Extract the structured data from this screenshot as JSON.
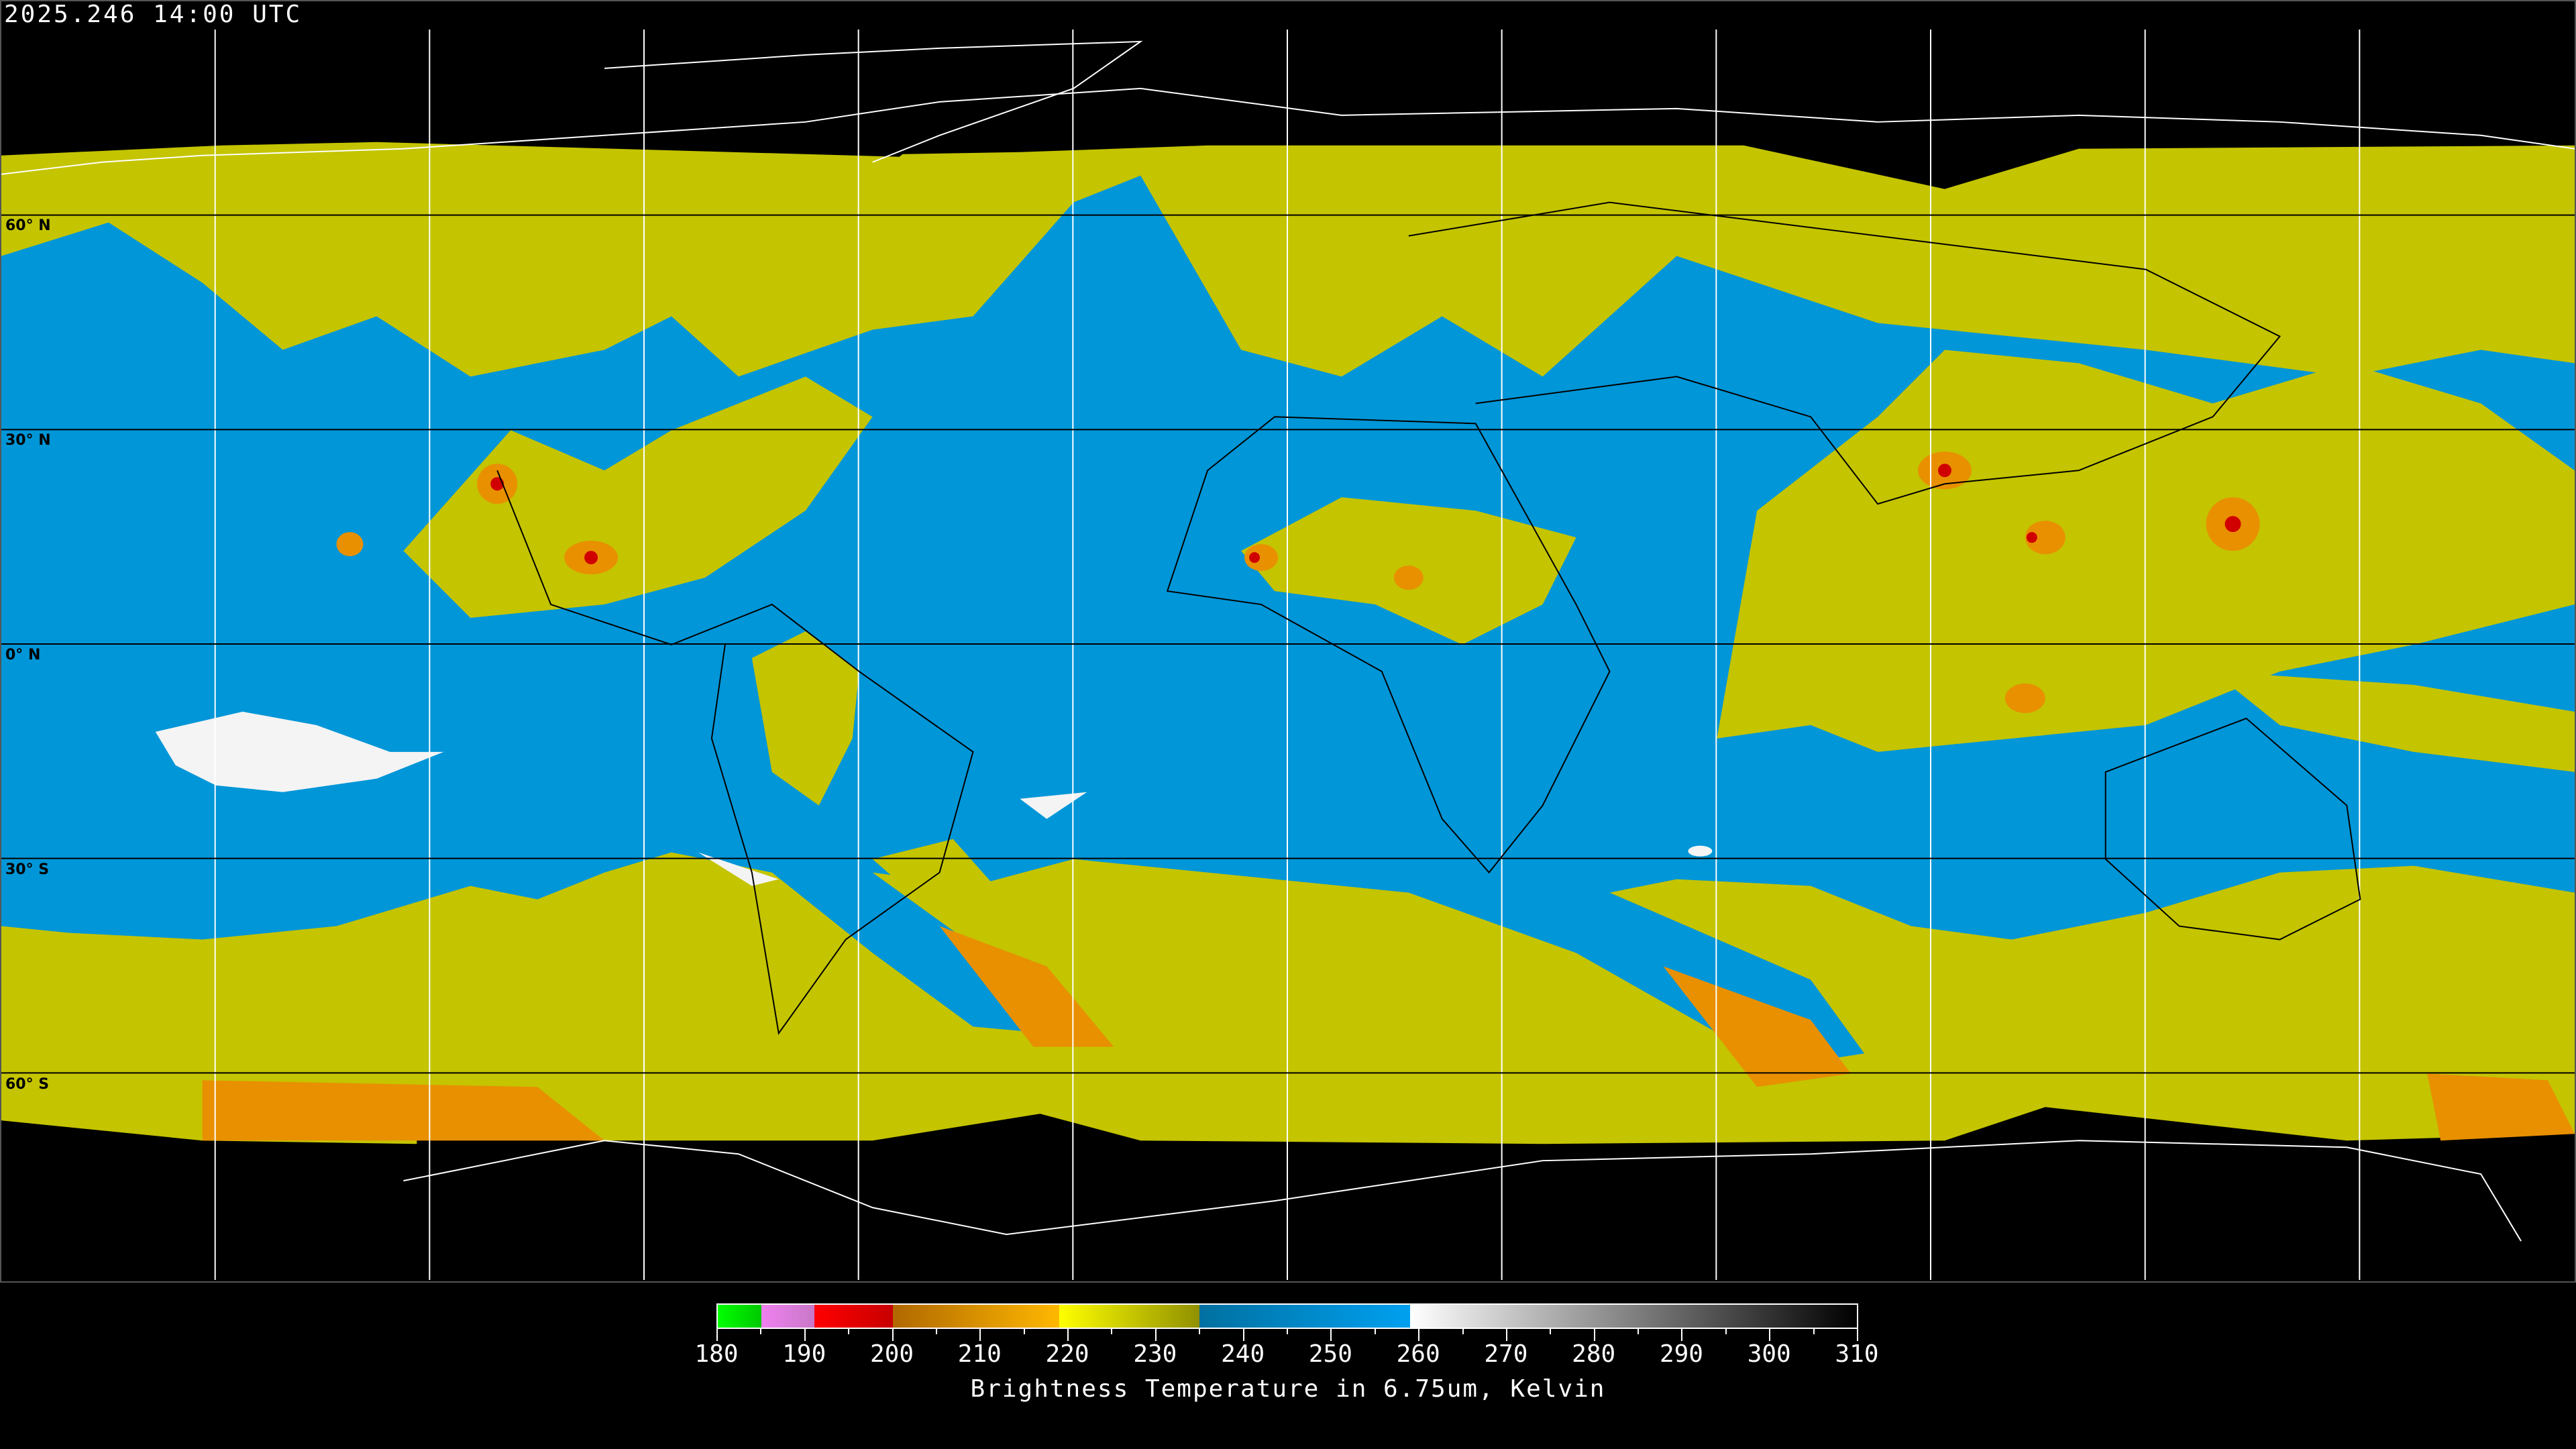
{
  "timestamp": "2025.246 14:00 UTC",
  "latitude_labels": [
    "60° N",
    "30° N",
    "0° N",
    "30° S",
    "60° S"
  ],
  "colorbar": {
    "title": "Brightness Temperature in 6.75um, Kelvin",
    "min": 180,
    "max": 310,
    "tick_labels": [
      "180",
      "190",
      "200",
      "210",
      "220",
      "230",
      "240",
      "250",
      "260",
      "270",
      "280",
      "290",
      "300",
      "310"
    ],
    "segments": [
      {
        "from": 180,
        "to": 185,
        "colors": [
          "#00ff00",
          "#00c800"
        ]
      },
      {
        "from": 185,
        "to": 191,
        "colors": [
          "#f080f0",
          "#c878c8"
        ]
      },
      {
        "from": 191,
        "to": 200,
        "colors": [
          "#ff0000",
          "#c80000"
        ]
      },
      {
        "from": 200,
        "to": 219,
        "colors": [
          "#b06800",
          "#ffb800"
        ]
      },
      {
        "from": 219,
        "to": 235,
        "colors": [
          "#ffff00",
          "#909000"
        ]
      },
      {
        "from": 235,
        "to": 259,
        "colors": [
          "#0070a0",
          "#00a0f0"
        ]
      },
      {
        "from": 259,
        "to": 310,
        "colors": [
          "#ffffff",
          "#000000"
        ]
      }
    ]
  },
  "colors": {
    "moist_high_cloud": "#c8c800",
    "dry_air": "#0096d8",
    "very_dry": "#f4f4f4",
    "cold_tops": "#e89000",
    "deep_convection": "#d00000",
    "coastline_land": "#000000",
    "coastline_polar": "#ffffff"
  }
}
